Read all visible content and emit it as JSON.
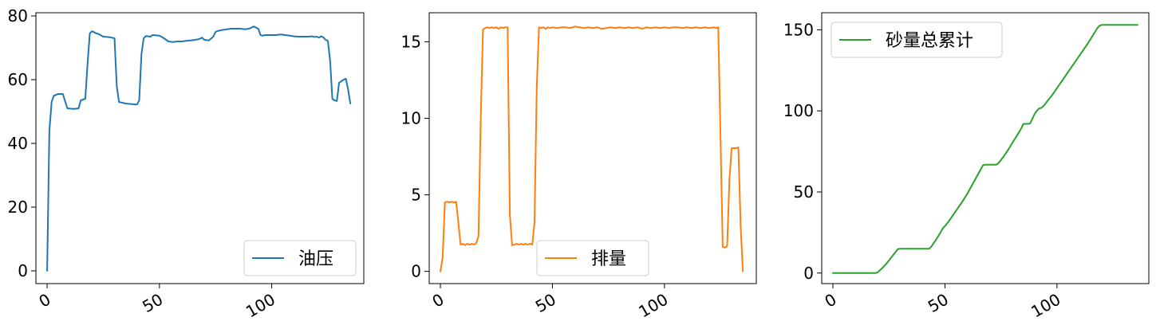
{
  "chart_data": [
    {
      "type": "line",
      "xlim": [
        -5,
        141
      ],
      "ylim": [
        -4,
        81
      ],
      "yticks": [
        0,
        20,
        40,
        60,
        80
      ],
      "xticks": [
        0,
        50,
        100
      ],
      "grid": false,
      "legend_position": "lower-right",
      "series": [
        {
          "name": "油压",
          "color": "#1f77b4",
          "points": [
            [
              0,
              0
            ],
            [
              1,
              44
            ],
            [
              2,
              53
            ],
            [
              3,
              55
            ],
            [
              5,
              55.5
            ],
            [
              7,
              55.5
            ],
            [
              9,
              51
            ],
            [
              12,
              50.8
            ],
            [
              14,
              51
            ],
            [
              15,
              53.5
            ],
            [
              17,
              54
            ],
            [
              18,
              65
            ],
            [
              19,
              74.5
            ],
            [
              20,
              75.2
            ],
            [
              22,
              74.5
            ],
            [
              23,
              74.3
            ],
            [
              25,
              73.5
            ],
            [
              28,
              73.3
            ],
            [
              30,
              73
            ],
            [
              31,
              58
            ],
            [
              32,
              53
            ],
            [
              35,
              52.5
            ],
            [
              38,
              52.3
            ],
            [
              40,
              52.2
            ],
            [
              41,
              53.5
            ],
            [
              42,
              68
            ],
            [
              43,
              73
            ],
            [
              44,
              73.7
            ],
            [
              46,
              73.5
            ],
            [
              47,
              74
            ],
            [
              50,
              73.8
            ],
            [
              52,
              73
            ],
            [
              53,
              72.5
            ],
            [
              54,
              72
            ],
            [
              56,
              71.8
            ],
            [
              58,
              72
            ],
            [
              60,
              72
            ],
            [
              62,
              72.2
            ],
            [
              64,
              72.3
            ],
            [
              66,
              72.5
            ],
            [
              68,
              72.8
            ],
            [
              69,
              73.2
            ],
            [
              70,
              72.5
            ],
            [
              72,
              72.3
            ],
            [
              74,
              73.5
            ],
            [
              75,
              75
            ],
            [
              76,
              75.3
            ],
            [
              78,
              75.6
            ],
            [
              80,
              75.8
            ],
            [
              82,
              76
            ],
            [
              84,
              76
            ],
            [
              86,
              76
            ],
            [
              88,
              75.8
            ],
            [
              90,
              76
            ],
            [
              92,
              76.7
            ],
            [
              94,
              76
            ],
            [
              95,
              74
            ],
            [
              96,
              73.8
            ],
            [
              97,
              74
            ],
            [
              100,
              74
            ],
            [
              102,
              74
            ],
            [
              104,
              74.2
            ],
            [
              106,
              74
            ],
            [
              108,
              73.8
            ],
            [
              110,
              73.6
            ],
            [
              112,
              73.5
            ],
            [
              114,
              73.5
            ],
            [
              116,
              73.5
            ],
            [
              118,
              73.6
            ],
            [
              119,
              73.4
            ],
            [
              120,
              73.5
            ],
            [
              121,
              73.2
            ],
            [
              122,
              73.6
            ],
            [
              123,
              73.3
            ],
            [
              124,
              72.5
            ],
            [
              125,
              72.2
            ],
            [
              126,
              66
            ],
            [
              127,
              54
            ],
            [
              128,
              53.5
            ],
            [
              129,
              53.3
            ],
            [
              130,
              59
            ],
            [
              131,
              59.5
            ],
            [
              132,
              60
            ],
            [
              133,
              60.3
            ],
            [
              134,
              57
            ],
            [
              135,
              52.5
            ]
          ]
        }
      ]
    },
    {
      "type": "line",
      "xlim": [
        -5,
        141
      ],
      "ylim": [
        -0.8,
        16.9
      ],
      "yticks": [
        0,
        5,
        10,
        15
      ],
      "xticks": [
        0,
        50,
        100
      ],
      "grid": false,
      "legend_position": "lower-center",
      "series": [
        {
          "name": "排量",
          "color": "#ff7f0e",
          "points": [
            [
              0,
              0
            ],
            [
              1,
              0.9
            ],
            [
              2,
              4.5
            ],
            [
              3,
              4.55
            ],
            [
              4,
              4.5
            ],
            [
              5,
              4.55
            ],
            [
              6,
              4.5
            ],
            [
              7,
              4.55
            ],
            [
              8,
              3.2
            ],
            [
              9,
              1.75
            ],
            [
              10,
              1.8
            ],
            [
              11,
              1.72
            ],
            [
              12,
              1.8
            ],
            [
              13,
              1.75
            ],
            [
              14,
              1.8
            ],
            [
              15,
              1.75
            ],
            [
              16,
              1.85
            ],
            [
              17,
              2.3
            ],
            [
              18,
              10
            ],
            [
              19,
              15.8
            ],
            [
              20,
              15.9
            ],
            [
              21,
              15.95
            ],
            [
              22,
              15.9
            ],
            [
              23,
              15.95
            ],
            [
              24,
              15.9
            ],
            [
              25,
              15.95
            ],
            [
              26,
              15.85
            ],
            [
              27,
              15.95
            ],
            [
              28,
              15.9
            ],
            [
              29,
              15.95
            ],
            [
              30,
              15.95
            ],
            [
              31,
              3.7
            ],
            [
              32,
              1.7
            ],
            [
              33,
              1.75
            ],
            [
              34,
              1.8
            ],
            [
              35,
              1.75
            ],
            [
              36,
              1.8
            ],
            [
              37,
              1.75
            ],
            [
              38,
              1.8
            ],
            [
              39,
              1.75
            ],
            [
              40,
              1.8
            ],
            [
              41,
              1.75
            ],
            [
              42,
              3.2
            ],
            [
              43,
              12
            ],
            [
              44,
              15.95
            ],
            [
              45,
              15.9
            ],
            [
              46,
              15.95
            ],
            [
              47,
              15.85
            ],
            [
              48,
              15.95
            ],
            [
              49,
              15.9
            ],
            [
              50,
              15.95
            ],
            [
              52,
              15.9
            ],
            [
              54,
              15.95
            ],
            [
              56,
              15.95
            ],
            [
              58,
              15.9
            ],
            [
              60,
              16
            ],
            [
              62,
              15.95
            ],
            [
              64,
              15.9
            ],
            [
              66,
              15.95
            ],
            [
              68,
              15.9
            ],
            [
              70,
              15.95
            ],
            [
              72,
              15.85
            ],
            [
              74,
              15.9
            ],
            [
              76,
              15.95
            ],
            [
              78,
              15.9
            ],
            [
              80,
              15.95
            ],
            [
              82,
              15.9
            ],
            [
              84,
              15.95
            ],
            [
              86,
              15.9
            ],
            [
              88,
              15.95
            ],
            [
              90,
              15.85
            ],
            [
              92,
              15.95
            ],
            [
              94,
              15.9
            ],
            [
              96,
              15.95
            ],
            [
              98,
              15.9
            ],
            [
              100,
              15.95
            ],
            [
              102,
              15.9
            ],
            [
              104,
              15.95
            ],
            [
              106,
              15.95
            ],
            [
              108,
              15.9
            ],
            [
              110,
              15.95
            ],
            [
              112,
              15.9
            ],
            [
              114,
              15.95
            ],
            [
              116,
              15.9
            ],
            [
              118,
              15.95
            ],
            [
              120,
              15.9
            ],
            [
              122,
              15.95
            ],
            [
              123,
              15.9
            ],
            [
              124,
              15.95
            ],
            [
              125,
              9
            ],
            [
              126,
              1.6
            ],
            [
              127,
              1.55
            ],
            [
              128,
              1.65
            ],
            [
              129,
              6
            ],
            [
              130,
              8.05
            ],
            [
              131,
              8.05
            ],
            [
              132,
              8.05
            ],
            [
              133,
              8.1
            ],
            [
              134,
              3
            ],
            [
              135,
              0
            ]
          ]
        }
      ]
    },
    {
      "type": "line",
      "xlim": [
        -5,
        141
      ],
      "ylim": [
        -6.5,
        160.5
      ],
      "yticks": [
        0,
        50,
        100,
        150
      ],
      "xticks": [
        0,
        50,
        100
      ],
      "grid": false,
      "legend_position": "upper-left",
      "series": [
        {
          "name": "砂量总累计",
          "color": "#2ca02c",
          "points": [
            [
              0,
              0
            ],
            [
              5,
              0
            ],
            [
              10,
              0
            ],
            [
              15,
              0
            ],
            [
              19,
              0
            ],
            [
              20,
              0.5
            ],
            [
              22,
              3
            ],
            [
              24,
              6
            ],
            [
              26,
              9.5
            ],
            [
              28,
              13
            ],
            [
              29,
              14.8
            ],
            [
              30,
              15
            ],
            [
              35,
              15
            ],
            [
              40,
              15
            ],
            [
              43,
              15
            ],
            [
              44,
              16.5
            ],
            [
              46,
              20.5
            ],
            [
              48,
              25
            ],
            [
              49,
              27.5
            ],
            [
              50,
              29
            ],
            [
              52,
              32.5
            ],
            [
              54,
              36.5
            ],
            [
              56,
              40.5
            ],
            [
              58,
              44.5
            ],
            [
              60,
              49
            ],
            [
              62,
              54
            ],
            [
              64,
              59
            ],
            [
              66,
              64
            ],
            [
              67,
              66.5
            ],
            [
              68,
              66.8
            ],
            [
              70,
              66.8
            ],
            [
              73,
              66.8
            ],
            [
              74,
              68
            ],
            [
              76,
              71.5
            ],
            [
              78,
              75.5
            ],
            [
              80,
              80
            ],
            [
              82,
              84.5
            ],
            [
              84,
              89
            ],
            [
              85,
              92
            ],
            [
              87,
              92
            ],
            [
              88,
              92.2
            ],
            [
              89,
              95
            ],
            [
              90,
              98
            ],
            [
              91,
              100
            ],
            [
              92,
              101.5
            ],
            [
              93,
              101.8
            ],
            [
              94,
              103
            ],
            [
              96,
              106.5
            ],
            [
              98,
              110
            ],
            [
              100,
              114
            ],
            [
              102,
              118
            ],
            [
              104,
              122
            ],
            [
              106,
              126
            ],
            [
              108,
              130
            ],
            [
              110,
              134
            ],
            [
              112,
              138
            ],
            [
              114,
              142
            ],
            [
              116,
              146.5
            ],
            [
              118,
              151
            ],
            [
              119,
              152.5
            ],
            [
              120,
              153
            ],
            [
              125,
              153
            ],
            [
              130,
              153
            ],
            [
              136,
              153
            ]
          ]
        }
      ]
    }
  ]
}
